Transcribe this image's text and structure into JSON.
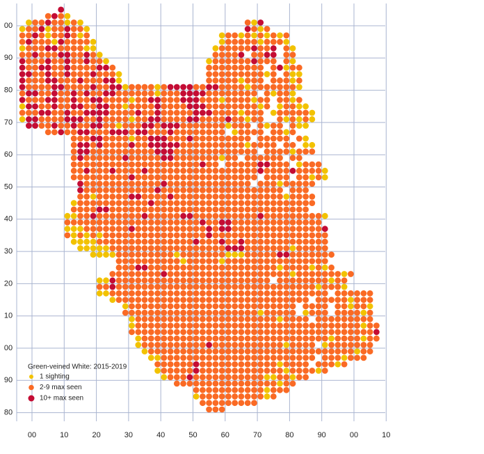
{
  "grid": {
    "y_labels": [
      "00",
      "90",
      "80",
      "70",
      "60",
      "50",
      "40",
      "30",
      "20",
      "10",
      "00",
      "90",
      "80"
    ],
    "x_labels": [
      "00",
      "10",
      "20",
      "30",
      "40",
      "50",
      "60",
      "70",
      "80",
      "90",
      "00",
      "10"
    ]
  },
  "legend": {
    "title": "Green-veined White:  2015-2019",
    "items": [
      {
        "code": "y",
        "label": "1 sighting",
        "color": "#f2c200"
      },
      {
        "code": "o",
        "label": "2-9 max seen",
        "color": "#fa6a24"
      },
      {
        "code": "r",
        "label": "10+ max seen",
        "color": "#c40c34"
      }
    ]
  },
  "squares": [
    "......r",
    "....oroy",
    ".yoorooyoy.........................oyr",
    "yooryoorooy........................royo",
    "ooroyooroyo....................yooyoyoyoyo",
    "oroooyrooooy...................yoooooyoooy",
    "yooorrooooyy..................yoooooroor.oy",
    "oorooorrooroy.................oooor.oorr.oo",
    "rooorooroorooy...............yoooooorooo.oy",
    "roorrooroooorro..............ooooooooo.oryoo",
    "rroorooroooroooy.............oooooooooyo.oyy",
    "rooorrooorooorry.............oooooyooo.oooyo",
    "roooorrooooroorryooooyorrrroorrooooyoooooooy",
    "orrooroororoorrooooooyooorrrroooooooo.oyooy",
    "rooorrooroorrooooyoorrooorrroooyooooyoo.ooyo",
    "yrrooroorroorrooyooooroooorrrooooooooyo.yooyy",
    "ooorrooroorrrrooooroorooooorrrooooyooo.yoooooy",
    "yrroooorrroorooooyoorroooorroooorooyoo..oyoyoy",
    ".rroorooroorrooyooorrorrroooooooyooo.oyoo.oyy",
    "....ooroorrooorrrorroooroooooooo.yoooo.ooyo",
    "........ooorrooooyoorrrooorooooooooo.ooooo.oy",
    "........orrorooooroorrrrrooooooooooyoooo.oo.yy",
    "........orroooooooooorrrooooooooooooo.ooooyooo",
    "........oroooooorooooorroooooooyoo.oooooo.oo.",
    "........ooooooooooooooooooooroo.ooooorrooo.yooo",
    "........oorooorooooroooooooooooooooooroooorooooy",
    "........ooooooooorooooooooooooooooooo.oooo.ooyoy",
    ".........roooooooooooorooooooooooooo.oooyooooo",
    ".........rooooooooooorooooooooooooooooooo.ooo",
    ".........ooyooooorrooooroooooooooooooooooyoooo",
    "........yooooooooooorooooooooooooooooooooooooo",
    "........oooorrooooooooooooooooooooooooooooooo",
    ".......yyoorooooooorooooorrooooooooooroooooooooy",
    ".......oooooooooooooooooooooroorroooooooooooooo",
    ".......yyyooooooorooooooooooororroooooooooooooor",
    ".......oyoyoyooooooooooooooooroooooooooooooooooo",
    "........yyyyoooooooooooooooroooroorooooooooooooo",
    ".........yyyyyoooooooooooooooooorrroooooooyooooo",
    "...........yyyyoooooooooyoooooooyyyooooorrooooooo",
    "...............ooooooooooyoooooyoooooooooooooooo",
    "...............ooorrooooooooooooooooooooyooooyoyo",
    "..............ooooooooroooooooooooooooooooyoooooooyo",
    "............yyroooooooooooooooooooooooo.ooooooooyoo",
    "............ooroooooooooooooooooooooooooooooooyoooy",
    "............yyoooooooooooooooooooooooooooooooooo.oooooo",
    "..............yoooooooooooooooooooooooooooooo.oooooyooo",
    "................yoooooooooooooooooooooooooo.oooo.ooyooy",
    "................oooooooooooooooooooooyooooo.yooo.ooooyo",
    ".................yooooooooooooooooooooooyoooo.ooooooooo",
    ".................yoooooooooooooooooooooooooooooooooooyoo",
    ".................oooooooooooooooooooooooooooooooooooooor",
    "..................yoooooooooooooooooooooooooooooyooooyoo",
    "..................yooooooooooroooooooooooyoooo.yooooooo",
    "...................yooooooooooooooooooooooooooooooooyoo",
    "....................yyoooooooooooooooooooooooo.oooyooo",
    ".....................oooooorooooooooooooyoooo.oooyo",
    ".....................yoooooroooooooooooooyooooyo",
    "......................yoooroooooooooooyyooyoo",
    "........................ooooooooooooooooyoo",
    "...........................oooooooooooyooo",
    "...........................yooooooooooyo",
    "............................ooooooooo",
    ".............................ooo"
  ]
}
